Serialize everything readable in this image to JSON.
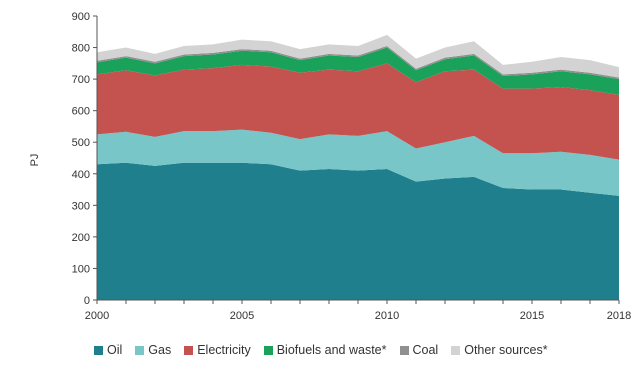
{
  "chart_data": {
    "type": "area",
    "stacked": true,
    "ylabel": "PJ",
    "xlabel": "",
    "title": "",
    "ylim": [
      0,
      900
    ],
    "yticks": [
      0,
      100,
      200,
      300,
      400,
      500,
      600,
      700,
      800,
      900
    ],
    "xlim": [
      2000,
      2018
    ],
    "xtick_labels": [
      "2000",
      "2005",
      "2010",
      "2015",
      "2018"
    ],
    "xticks": [
      2000,
      2005,
      2010,
      2015,
      2018
    ],
    "x": [
      2000,
      2001,
      2002,
      2003,
      2004,
      2005,
      2006,
      2007,
      2008,
      2009,
      2010,
      2011,
      2012,
      2013,
      2014,
      2015,
      2016,
      2017,
      2018
    ],
    "legend_position": "bottom",
    "series": [
      {
        "name": "Oil",
        "color": "#1f7f8c",
        "values": [
          430,
          435,
          425,
          435,
          435,
          435,
          430,
          410,
          415,
          410,
          415,
          375,
          385,
          390,
          355,
          350,
          350,
          340,
          330
        ]
      },
      {
        "name": "Gas",
        "color": "#79c6c9",
        "values": [
          95,
          98,
          92,
          100,
          100,
          105,
          100,
          100,
          110,
          110,
          120,
          105,
          115,
          130,
          110,
          115,
          120,
          120,
          115
        ]
      },
      {
        "name": "Electricity",
        "color": "#c4524f",
        "values": [
          190,
          195,
          195,
          195,
          200,
          205,
          210,
          210,
          205,
          205,
          215,
          210,
          225,
          210,
          205,
          205,
          205,
          205,
          205
        ]
      },
      {
        "name": "Biofuels and waste*",
        "color": "#1aa25a",
        "values": [
          38,
          40,
          38,
          43,
          43,
          45,
          45,
          40,
          45,
          45,
          50,
          38,
          38,
          45,
          40,
          45,
          50,
          50,
          50
        ]
      },
      {
        "name": "Coal",
        "color": "#909090",
        "values": [
          5,
          5,
          5,
          5,
          5,
          5,
          5,
          5,
          5,
          5,
          5,
          5,
          5,
          5,
          5,
          5,
          5,
          5,
          5
        ]
      },
      {
        "name": "Other sources*",
        "color": "#d3d3d3",
        "values": [
          27,
          27,
          25,
          27,
          27,
          30,
          30,
          30,
          30,
          30,
          35,
          32,
          32,
          40,
          30,
          35,
          40,
          40,
          33
        ]
      }
    ]
  }
}
